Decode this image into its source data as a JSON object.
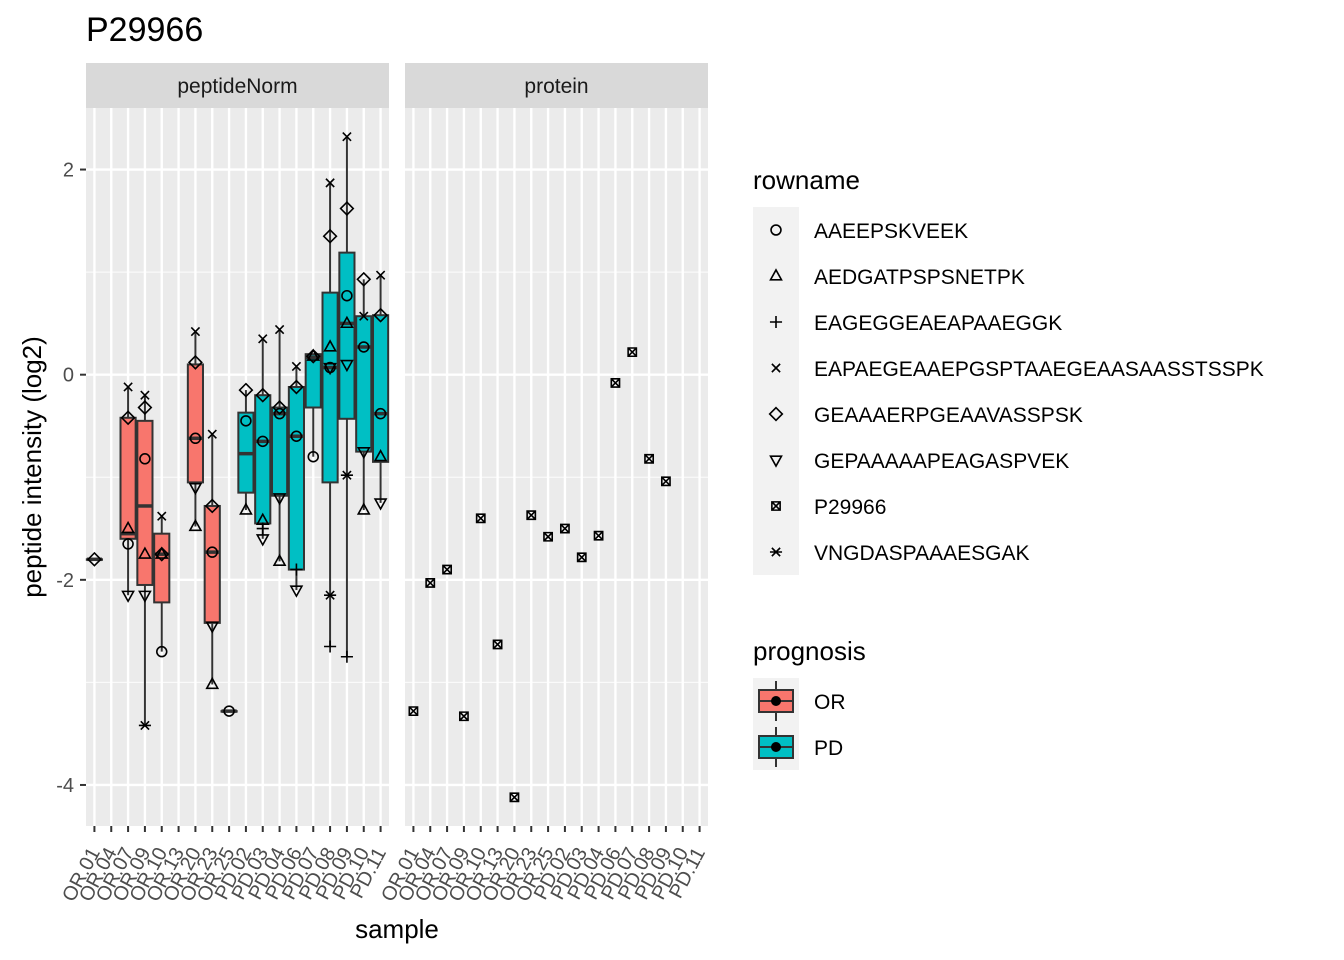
{
  "chart_data": {
    "type": "box",
    "title": "P29966",
    "xlabel": "sample",
    "ylabel": "peptide intensity (log2)",
    "ylim": [
      -4.4,
      2.6
    ],
    "yticks": [
      -4,
      -2,
      0,
      2
    ],
    "ytick_labels": [
      "-4",
      "-2",
      "0",
      "2"
    ],
    "grid": true,
    "samples": [
      "OR.01",
      "OR.04",
      "OR.07",
      "OR.09",
      "OR.10",
      "OR.13",
      "OR.20",
      "OR.23",
      "OR.25",
      "PD.02",
      "PD.03",
      "PD.04",
      "PD.06",
      "PD.07",
      "PD.08",
      "PD.09",
      "PD.10",
      "PD.11"
    ],
    "facets": [
      {
        "label": "peptideNorm",
        "boxes": [
          {
            "sample": "OR.01",
            "group": "OR",
            "q1": -1.8,
            "median": -1.8,
            "q3": -1.8,
            "lo": -1.8,
            "hi": -1.8
          },
          {
            "sample": "OR.07",
            "group": "OR",
            "q1": -1.6,
            "median": -1.55,
            "q3": -0.42,
            "lo": -2.15,
            "hi": -0.12
          },
          {
            "sample": "OR.09",
            "group": "OR",
            "q1": -2.05,
            "median": -1.28,
            "q3": -0.45,
            "lo": -3.42,
            "hi": -0.2
          },
          {
            "sample": "OR.10",
            "group": "OR",
            "q1": -2.22,
            "median": -1.75,
            "q3": -1.55,
            "lo": -2.7,
            "hi": -1.38
          },
          {
            "sample": "OR.20",
            "group": "OR",
            "q1": -1.05,
            "median": -0.62,
            "q3": 0.1,
            "lo": -1.48,
            "hi": 0.42
          },
          {
            "sample": "OR.23",
            "group": "OR",
            "q1": -2.42,
            "median": -1.73,
            "q3": -1.28,
            "lo": -3.02,
            "hi": -0.58
          },
          {
            "sample": "OR.25",
            "group": "OR",
            "q1": -3.28,
            "median": -3.28,
            "q3": -3.28,
            "lo": -3.28,
            "hi": -3.28
          },
          {
            "sample": "PD.02",
            "group": "PD",
            "q1": -1.15,
            "median": -0.77,
            "q3": -0.37,
            "lo": -1.32,
            "hi": -0.15
          },
          {
            "sample": "PD.03",
            "group": "PD",
            "q1": -1.45,
            "median": -0.65,
            "q3": -0.2,
            "lo": -1.6,
            "hi": 0.35
          },
          {
            "sample": "PD.04",
            "group": "PD",
            "q1": -1.18,
            "median": -0.38,
            "q3": -0.32,
            "lo": -1.82,
            "hi": 0.44
          },
          {
            "sample": "PD.06",
            "group": "PD",
            "q1": -1.9,
            "median": -0.6,
            "q3": -0.12,
            "lo": -2.1,
            "hi": 0.08
          },
          {
            "sample": "PD.07",
            "group": "PD",
            "q1": -0.32,
            "median": 0.17,
            "q3": 0.2,
            "lo": -0.8,
            "hi": 0.2
          },
          {
            "sample": "PD.08",
            "group": "PD",
            "q1": -1.05,
            "median": 0.07,
            "q3": 0.8,
            "lo": -2.65,
            "hi": 1.87
          },
          {
            "sample": "PD.09",
            "group": "PD",
            "q1": -0.43,
            "median": 0.5,
            "q3": 1.19,
            "lo": -2.75,
            "hi": 2.32
          },
          {
            "sample": "PD.10",
            "group": "PD",
            "q1": -0.75,
            "median": 0.27,
            "q3": 0.57,
            "lo": -1.32,
            "hi": 0.93
          },
          {
            "sample": "PD.11",
            "group": "PD",
            "q1": -0.85,
            "median": -0.38,
            "q3": 0.58,
            "lo": -1.25,
            "hi": 0.97
          }
        ],
        "points": [
          {
            "sample": "OR.01",
            "peptide": "GEAAAERPGEAAVASSPSK",
            "y": -1.8
          },
          {
            "sample": "OR.07",
            "peptide": "AAEEPSKVEEK",
            "y": -1.65
          },
          {
            "sample": "OR.07",
            "peptide": "AEDGATPSPSNETPK",
            "y": -1.5
          },
          {
            "sample": "OR.07",
            "peptide": "EAPAEGEAAEPGSPTAAEGEAASAASSTSSPK",
            "y": -0.12
          },
          {
            "sample": "OR.07",
            "peptide": "GEAAAERPGEAAVASSPSK",
            "y": -0.42
          },
          {
            "sample": "OR.07",
            "peptide": "GEPAAAAAPEAGASPVEK",
            "y": -2.15
          },
          {
            "sample": "OR.09",
            "peptide": "AAEEPSKVEEK",
            "y": -0.82
          },
          {
            "sample": "OR.09",
            "peptide": "AEDGATPSPSNETPK",
            "y": -1.75
          },
          {
            "sample": "OR.09",
            "peptide": "EAPAEGEAAEPGSPTAAEGEAASAASSTSSPK",
            "y": -0.2
          },
          {
            "sample": "OR.09",
            "peptide": "GEAAAERPGEAAVASSPSK",
            "y": -0.32
          },
          {
            "sample": "OR.09",
            "peptide": "GEPAAAAAPEAGASPVEK",
            "y": -2.15
          },
          {
            "sample": "OR.09",
            "peptide": "VNGDASPAAAESGAK",
            "y": -3.42
          },
          {
            "sample": "OR.10",
            "peptide": "AAEEPSKVEEK",
            "y": -2.7
          },
          {
            "sample": "OR.10",
            "peptide": "AEDGATPSPSNETPK",
            "y": -1.75
          },
          {
            "sample": "OR.10",
            "peptide": "EAPAEGEAAEPGSPTAAEGEAASAASSTSSPK",
            "y": -1.38
          },
          {
            "sample": "OR.10",
            "peptide": "GEAAAERPGEAAVASSPSK",
            "y": -1.75
          },
          {
            "sample": "OR.20",
            "peptide": "AAEEPSKVEEK",
            "y": -0.62
          },
          {
            "sample": "OR.20",
            "peptide": "AEDGATPSPSNETPK",
            "y": -1.48
          },
          {
            "sample": "OR.20",
            "peptide": "EAPAEGEAAEPGSPTAAEGEAASAASSTSSPK",
            "y": 0.42
          },
          {
            "sample": "OR.20",
            "peptide": "GEAAAERPGEAAVASSPSK",
            "y": 0.12
          },
          {
            "sample": "OR.20",
            "peptide": "GEPAAAAAPEAGASPVEK",
            "y": -1.1
          },
          {
            "sample": "OR.23",
            "peptide": "AAEEPSKVEEK",
            "y": -1.73
          },
          {
            "sample": "OR.23",
            "peptide": "AEDGATPSPSNETPK",
            "y": -3.02
          },
          {
            "sample": "OR.23",
            "peptide": "EAPAEGEAAEPGSPTAAEGEAASAASSTSSPK",
            "y": -0.58
          },
          {
            "sample": "OR.23",
            "peptide": "GEAAAERPGEAAVASSPSK",
            "y": -1.28
          },
          {
            "sample": "OR.23",
            "peptide": "GEPAAAAAPEAGASPVEK",
            "y": -2.45
          },
          {
            "sample": "OR.25",
            "peptide": "AAEEPSKVEEK",
            "y": -3.28
          },
          {
            "sample": "PD.02",
            "peptide": "AAEEPSKVEEK",
            "y": -0.45
          },
          {
            "sample": "PD.02",
            "peptide": "AEDGATPSPSNETPK",
            "y": -1.32
          },
          {
            "sample": "PD.02",
            "peptide": "GEAAAERPGEAAVASSPSK",
            "y": -0.15
          },
          {
            "sample": "PD.03",
            "peptide": "AAEEPSKVEEK",
            "y": -0.65
          },
          {
            "sample": "PD.03",
            "peptide": "AEDGATPSPSNETPK",
            "y": -1.42
          },
          {
            "sample": "PD.03",
            "peptide": "EAGEGGEAEAPAAEGGK",
            "y": -1.5
          },
          {
            "sample": "PD.03",
            "peptide": "EAPAEGEAAEPGSPTAAEGEAASAASSTSSPK",
            "y": 0.35
          },
          {
            "sample": "PD.03",
            "peptide": "GEAAAERPGEAAVASSPSK",
            "y": -0.2
          },
          {
            "sample": "PD.03",
            "peptide": "GEPAAAAAPEAGASPVEK",
            "y": -1.6
          },
          {
            "sample": "PD.04",
            "peptide": "AAEEPSKVEEK",
            "y": -0.38
          },
          {
            "sample": "PD.04",
            "peptide": "AEDGATPSPSNETPK",
            "y": -1.82
          },
          {
            "sample": "PD.04",
            "peptide": "EAPAEGEAAEPGSPTAAEGEAASAASSTSSPK",
            "y": 0.44
          },
          {
            "sample": "PD.04",
            "peptide": "GEAAAERPGEAAVASSPSK",
            "y": -0.32
          },
          {
            "sample": "PD.04",
            "peptide": "GEPAAAAAPEAGASPVEK",
            "y": -1.2
          },
          {
            "sample": "PD.06",
            "peptide": "AAEEPSKVEEK",
            "y": -0.6
          },
          {
            "sample": "PD.06",
            "peptide": "EAGEGGEAEAPAAEGGK",
            "y": -1.9
          },
          {
            "sample": "PD.06",
            "peptide": "EAPAEGEAAEPGSPTAAEGEAASAASSTSSPK",
            "y": 0.08
          },
          {
            "sample": "PD.06",
            "peptide": "GEAAAERPGEAAVASSPSK",
            "y": -0.12
          },
          {
            "sample": "PD.06",
            "peptide": "GEPAAAAAPEAGASPVEK",
            "y": -2.1
          },
          {
            "sample": "PD.07",
            "peptide": "AAEEPSKVEEK",
            "y": -0.8
          },
          {
            "sample": "PD.07",
            "peptide": "AEDGATPSPSNETPK",
            "y": 0.18
          },
          {
            "sample": "PD.07",
            "peptide": "GEAAAERPGEAAVASSPSK",
            "y": 0.18
          },
          {
            "sample": "PD.08",
            "peptide": "AAEEPSKVEEK",
            "y": 0.07
          },
          {
            "sample": "PD.08",
            "peptide": "AEDGATPSPSNETPK",
            "y": 0.27
          },
          {
            "sample": "PD.08",
            "peptide": "EAGEGGEAEAPAAEGGK",
            "y": -2.65
          },
          {
            "sample": "PD.08",
            "peptide": "EAPAEGEAAEPGSPTAAEGEAASAASSTSSPK",
            "y": 1.87
          },
          {
            "sample": "PD.08",
            "peptide": "GEAAAERPGEAAVASSPSK",
            "y": 1.35
          },
          {
            "sample": "PD.08",
            "peptide": "GEPAAAAAPEAGASPVEK",
            "y": 0.07
          },
          {
            "sample": "PD.08",
            "peptide": "VNGDASPAAAESGAK",
            "y": -2.15
          },
          {
            "sample": "PD.09",
            "peptide": "AAEEPSKVEEK",
            "y": 0.77
          },
          {
            "sample": "PD.09",
            "peptide": "AEDGATPSPSNETPK",
            "y": 0.5
          },
          {
            "sample": "PD.09",
            "peptide": "EAGEGGEAEAPAAEGGK",
            "y": -2.75
          },
          {
            "sample": "PD.09",
            "peptide": "EAPAEGEAAEPGSPTAAEGEAASAASSTSSPK",
            "y": 2.32
          },
          {
            "sample": "PD.09",
            "peptide": "GEAAAERPGEAAVASSPSK",
            "y": 1.62
          },
          {
            "sample": "PD.09",
            "peptide": "GEPAAAAAPEAGASPVEK",
            "y": 0.1
          },
          {
            "sample": "PD.09",
            "peptide": "VNGDASPAAAESGAK",
            "y": -0.98
          },
          {
            "sample": "PD.10",
            "peptide": "AAEEPSKVEEK",
            "y": 0.27
          },
          {
            "sample": "PD.10",
            "peptide": "AEDGATPSPSNETPK",
            "y": -1.32
          },
          {
            "sample": "PD.10",
            "peptide": "EAPAEGEAAEPGSPTAAEGEAASAASSTSSPK",
            "y": 0.57
          },
          {
            "sample": "PD.10",
            "peptide": "GEAAAERPGEAAVASSPSK",
            "y": 0.93
          },
          {
            "sample": "PD.10",
            "peptide": "GEPAAAAAPEAGASPVEK",
            "y": -0.75
          },
          {
            "sample": "PD.11",
            "peptide": "AAEEPSKVEEK",
            "y": -0.38
          },
          {
            "sample": "PD.11",
            "peptide": "AEDGATPSPSNETPK",
            "y": -0.8
          },
          {
            "sample": "PD.11",
            "peptide": "EAPAEGEAAEPGSPTAAEGEAASAASSTSSPK",
            "y": 0.97
          },
          {
            "sample": "PD.11",
            "peptide": "GEAAAERPGEAAVASSPSK",
            "y": 0.58
          },
          {
            "sample": "PD.11",
            "peptide": "GEPAAAAAPEAGASPVEK",
            "y": -1.25
          }
        ]
      },
      {
        "label": "protein",
        "boxes": [],
        "points": [
          {
            "sample": "OR.01",
            "peptide": "P29966",
            "y": -3.28
          },
          {
            "sample": "OR.04",
            "peptide": "P29966",
            "y": -2.03
          },
          {
            "sample": "OR.07",
            "peptide": "P29966",
            "y": -1.9
          },
          {
            "sample": "OR.09",
            "peptide": "P29966",
            "y": -3.33
          },
          {
            "sample": "OR.10",
            "peptide": "P29966",
            "y": -1.4
          },
          {
            "sample": "OR.13",
            "peptide": "P29966",
            "y": -2.63
          },
          {
            "sample": "OR.20",
            "peptide": "P29966",
            "y": -4.12
          },
          {
            "sample": "OR.23",
            "peptide": "P29966",
            "y": -1.37
          },
          {
            "sample": "OR.25",
            "peptide": "P29966",
            "y": -1.58
          },
          {
            "sample": "PD.02",
            "peptide": "P29966",
            "y": -1.5
          },
          {
            "sample": "PD.03",
            "peptide": "P29966",
            "y": -1.78
          },
          {
            "sample": "PD.04",
            "peptide": "P29966",
            "y": -1.57
          },
          {
            "sample": "PD.06",
            "peptide": "P29966",
            "y": -0.08
          },
          {
            "sample": "PD.07",
            "peptide": "P29966",
            "y": 0.22
          },
          {
            "sample": "PD.08",
            "peptide": "P29966",
            "y": -0.82
          },
          {
            "sample": "PD.09",
            "peptide": "P29966",
            "y": -1.04
          }
        ]
      }
    ],
    "legend": {
      "rowname": {
        "title": "rowname",
        "items": [
          {
            "label": "AAEEPSKVEEK",
            "shape": "circle"
          },
          {
            "label": "AEDGATPSPSNETPK",
            "shape": "triangle-up"
          },
          {
            "label": "EAGEGGEAEAPAAEGGK",
            "shape": "plus"
          },
          {
            "label": "EAPAEGEAAEPGSPTAAEGEAASAASSTSSPK",
            "shape": "cross"
          },
          {
            "label": "GEAAAERPGEAAVASSPSK",
            "shape": "diamond"
          },
          {
            "label": "GEPAAAAAPEAGASPVEK",
            "shape": "triangle-down"
          },
          {
            "label": "P29966",
            "shape": "square-cross"
          },
          {
            "label": "VNGDASPAAAESGAK",
            "shape": "asterisk"
          }
        ]
      },
      "prognosis": {
        "title": "prognosis",
        "items": [
          {
            "label": "OR",
            "color": "#F8766D"
          },
          {
            "label": "PD",
            "color": "#00BFC4"
          }
        ]
      }
    }
  }
}
